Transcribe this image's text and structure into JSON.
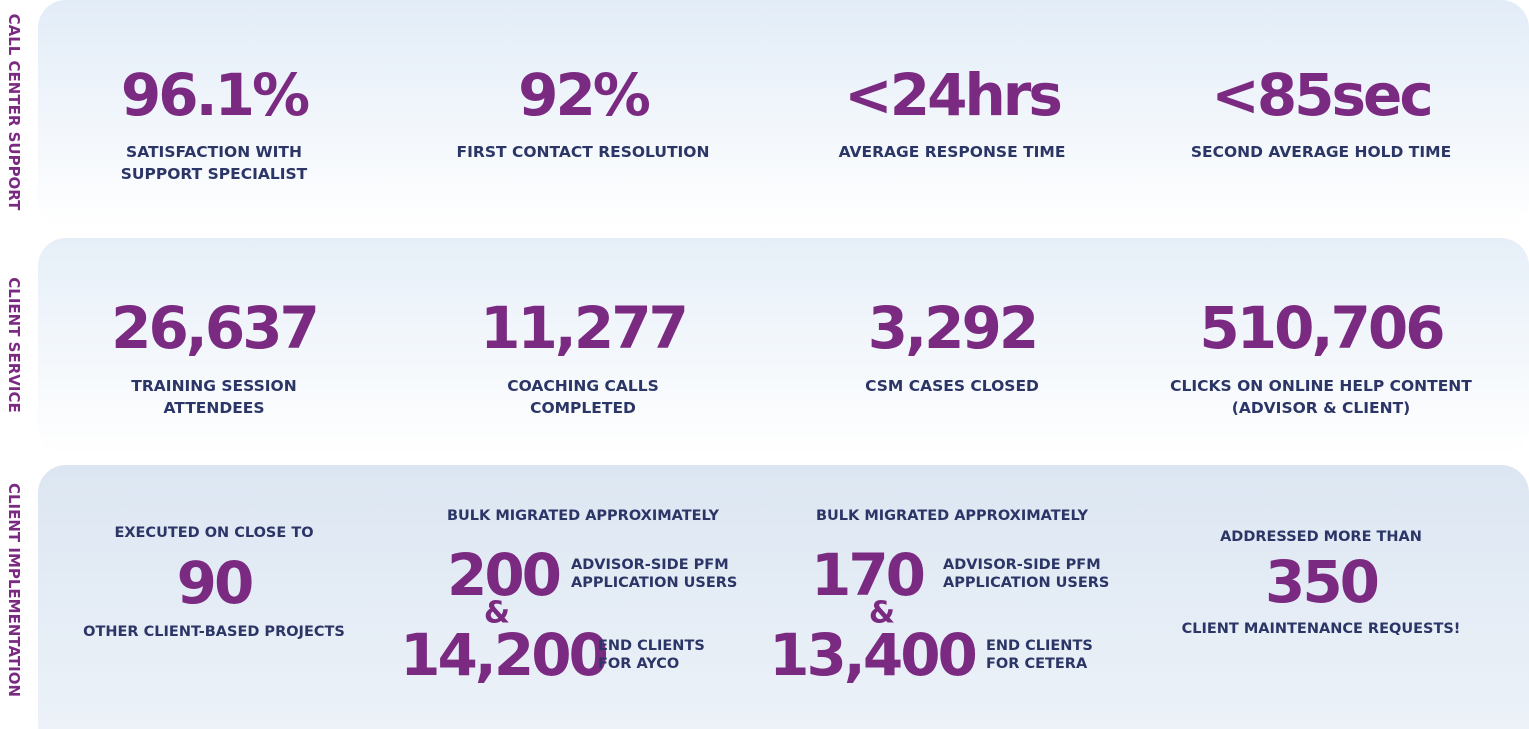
{
  "sections": [
    {
      "label": "CALL CENTER SUPPORT",
      "stats": [
        {
          "value": "96.1%",
          "caption": [
            "SATISFACTION WITH",
            "SUPPORT SPECIALIST"
          ]
        },
        {
          "value": "92%",
          "caption": [
            "FIRST CONTACT RESOLUTION"
          ]
        },
        {
          "value": "<24hrs",
          "caption": [
            "AVERAGE  RESPONSE TIME"
          ]
        },
        {
          "value": "<85sec",
          "caption": [
            "SECOND AVERAGE HOLD TIME"
          ]
        }
      ]
    },
    {
      "label": "CLIENT SERVICE",
      "stats": [
        {
          "value": "26,637",
          "caption": [
            "TRAINING SESSION",
            "ATTENDEES"
          ]
        },
        {
          "value": "11,277",
          "caption": [
            "COACHING CALLS",
            "COMPLETED"
          ]
        },
        {
          "value": "3,292",
          "caption": [
            "CSM CASES CLOSED"
          ]
        },
        {
          "value": "510,706",
          "caption": [
            "CLICKS ON ONLINE HELP CONTENT",
            "(ADVISOR & CLIENT)"
          ]
        }
      ]
    },
    {
      "label": "CLIENT IMPLEMENTATION",
      "stats": [
        {
          "intro": "EXECUTED ON CLOSE TO",
          "value": "90",
          "caption": [
            "OTHER CLIENT-BASED PROJECTS"
          ]
        },
        {
          "intro": "BULK MIGRATED APPROXIMATELY",
          "joiner": "&",
          "parts": [
            {
              "value": "200",
              "caption": [
                "ADVISOR-SIDE PFM",
                "APPLICATION USERS"
              ]
            },
            {
              "value": "14,200",
              "caption": [
                "END CLIENTS",
                "FOR AYCO"
              ]
            }
          ]
        },
        {
          "intro": "BULK MIGRATED APPROXIMATELY",
          "joiner": "&",
          "parts": [
            {
              "value": "170",
              "caption": [
                "ADVISOR-SIDE PFM",
                "APPLICATION USERS"
              ]
            },
            {
              "value": "13,400",
              "caption": [
                "END CLIENTS",
                "FOR CETERA"
              ]
            }
          ]
        },
        {
          "intro": "ADDRESSED MORE THAN",
          "value": "350",
          "caption": [
            "CLIENT MAINTENANCE REQUESTS!"
          ]
        }
      ]
    }
  ]
}
